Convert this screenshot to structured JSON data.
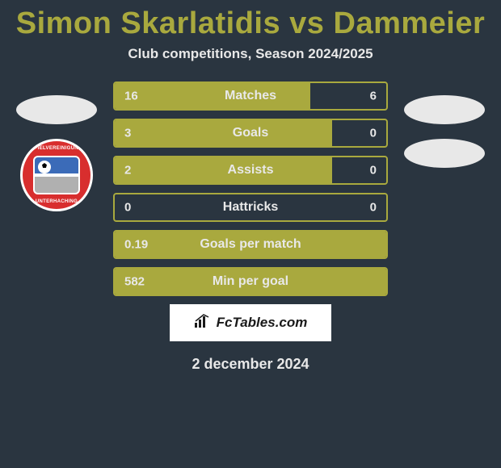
{
  "title": "Simon Skarlatidis vs Dammeier",
  "subtitle": "Club competitions, Season 2024/2025",
  "date": "2 december 2024",
  "watermark": "FcTables.com",
  "logo": {
    "top_text": "SPIELVEREINIGUNG",
    "bottom_text": "UNTERHACHING"
  },
  "colors": {
    "background": "#2a3540",
    "accent": "#a9a93e",
    "text_light": "#e8e8e8",
    "watermark_bg": "#ffffff",
    "logo_red": "#d82e2e",
    "logo_blue": "#3b6bb8"
  },
  "bars": [
    {
      "left": "16",
      "label": "Matches",
      "right": "6",
      "fill_pct": 72
    },
    {
      "left": "3",
      "label": "Goals",
      "right": "0",
      "fill_pct": 80
    },
    {
      "left": "2",
      "label": "Assists",
      "right": "0",
      "fill_pct": 80
    },
    {
      "left": "0",
      "label": "Hattricks",
      "right": "0",
      "fill_pct": 0
    },
    {
      "left": "0.19",
      "label": "Goals per match",
      "right": "",
      "fill_pct": 100
    },
    {
      "left": "582",
      "label": "Min per goal",
      "right": "",
      "fill_pct": 100
    }
  ]
}
